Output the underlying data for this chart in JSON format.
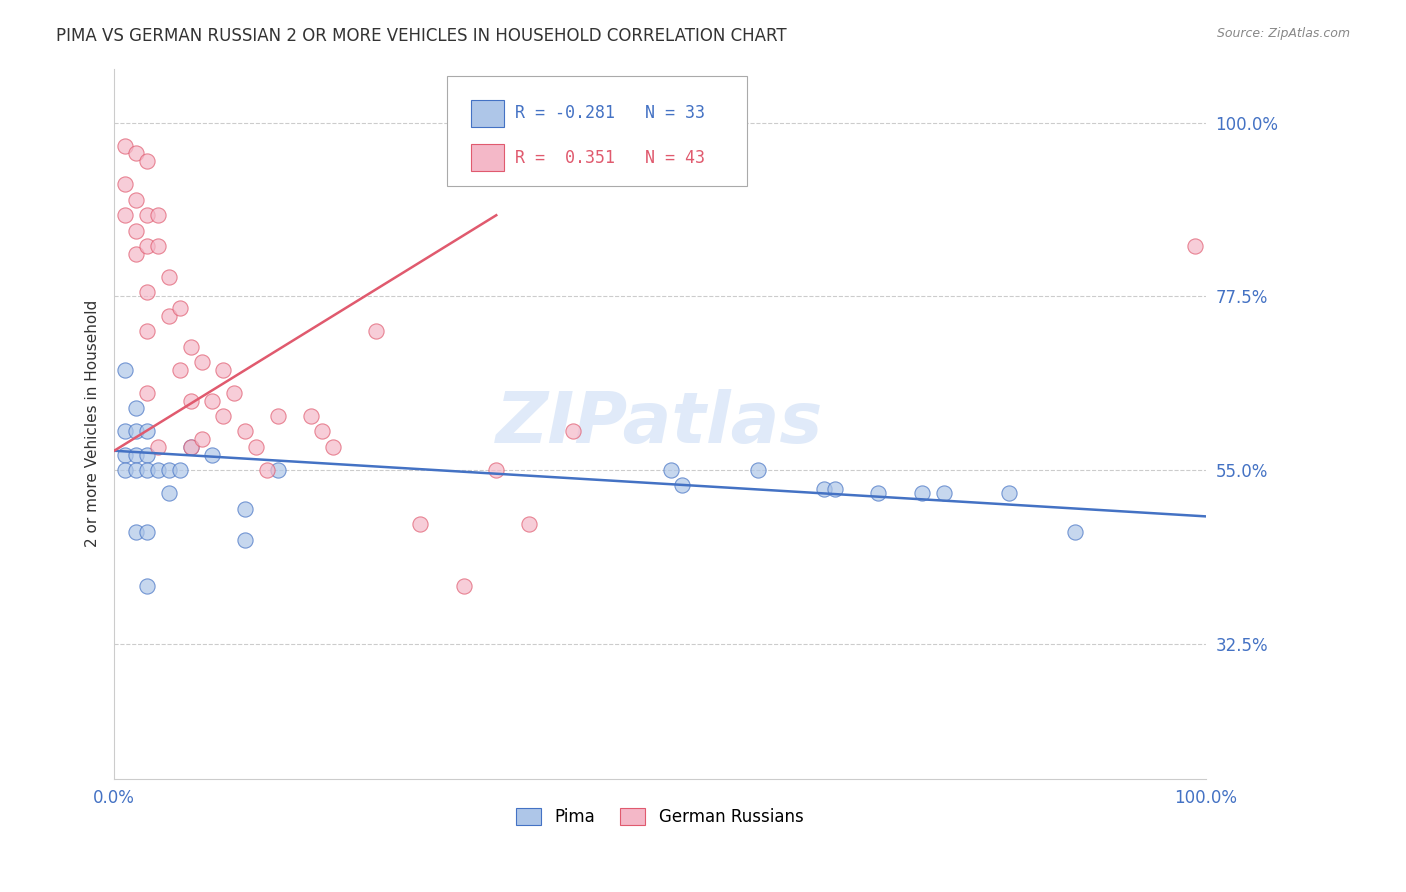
{
  "title": "PIMA VS GERMAN RUSSIAN 2 OR MORE VEHICLES IN HOUSEHOLD CORRELATION CHART",
  "source": "Source: ZipAtlas.com",
  "ylabel_label": "2 or more Vehicles in Household",
  "y_tick_labels": [
    "32.5%",
    "55.0%",
    "77.5%",
    "100.0%"
  ],
  "y_tick_positions": [
    0.325,
    0.55,
    0.775,
    1.0
  ],
  "xlim": [
    0.0,
    1.0
  ],
  "ylim": [
    0.15,
    1.07
  ],
  "legend_r1": "-0.281",
  "legend_n1": "33",
  "legend_r2": "0.351",
  "legend_n2": "43",
  "pima_color": "#aec6e8",
  "german_color": "#f4b8c8",
  "pima_line_color": "#4472C4",
  "german_line_color": "#E05A6E",
  "watermark": "ZIPatlas",
  "background_color": "#ffffff",
  "pima_x": [
    0.01,
    0.01,
    0.01,
    0.01,
    0.02,
    0.02,
    0.02,
    0.02,
    0.02,
    0.03,
    0.03,
    0.03,
    0.03,
    0.03,
    0.04,
    0.05,
    0.05,
    0.06,
    0.07,
    0.09,
    0.12,
    0.12,
    0.15,
    0.51,
    0.52,
    0.59,
    0.65,
    0.66,
    0.7,
    0.74,
    0.76,
    0.82,
    0.88
  ],
  "pima_y": [
    0.68,
    0.6,
    0.57,
    0.55,
    0.63,
    0.6,
    0.57,
    0.55,
    0.47,
    0.6,
    0.57,
    0.55,
    0.47,
    0.4,
    0.55,
    0.52,
    0.55,
    0.55,
    0.58,
    0.57,
    0.5,
    0.46,
    0.55,
    0.55,
    0.53,
    0.55,
    0.525,
    0.525,
    0.52,
    0.52,
    0.52,
    0.52,
    0.47
  ],
  "german_x": [
    0.01,
    0.01,
    0.01,
    0.02,
    0.02,
    0.02,
    0.02,
    0.03,
    0.03,
    0.03,
    0.03,
    0.03,
    0.03,
    0.04,
    0.04,
    0.04,
    0.05,
    0.05,
    0.06,
    0.06,
    0.07,
    0.07,
    0.07,
    0.08,
    0.08,
    0.09,
    0.1,
    0.1,
    0.11,
    0.12,
    0.13,
    0.14,
    0.15,
    0.18,
    0.19,
    0.2,
    0.24,
    0.28,
    0.32,
    0.35,
    0.38,
    0.42,
    0.99
  ],
  "german_y": [
    0.97,
    0.92,
    0.88,
    0.96,
    0.9,
    0.86,
    0.83,
    0.95,
    0.88,
    0.84,
    0.78,
    0.73,
    0.65,
    0.88,
    0.84,
    0.58,
    0.8,
    0.75,
    0.76,
    0.68,
    0.71,
    0.64,
    0.58,
    0.69,
    0.59,
    0.64,
    0.68,
    0.62,
    0.65,
    0.6,
    0.58,
    0.55,
    0.62,
    0.62,
    0.6,
    0.58,
    0.73,
    0.48,
    0.4,
    0.55,
    0.48,
    0.6,
    0.84
  ],
  "pima_trend_x": [
    0.0,
    1.0
  ],
  "pima_trend_y_start": 0.575,
  "pima_trend_y_end": 0.49,
  "german_trend_x_start": 0.0,
  "german_trend_x_end": 0.35,
  "german_trend_y_start": 0.575,
  "german_trend_y_end": 0.88,
  "marker_size": 120,
  "marker_alpha": 0.7,
  "legend1_label": "Pima",
  "legend2_label": "German Russians"
}
